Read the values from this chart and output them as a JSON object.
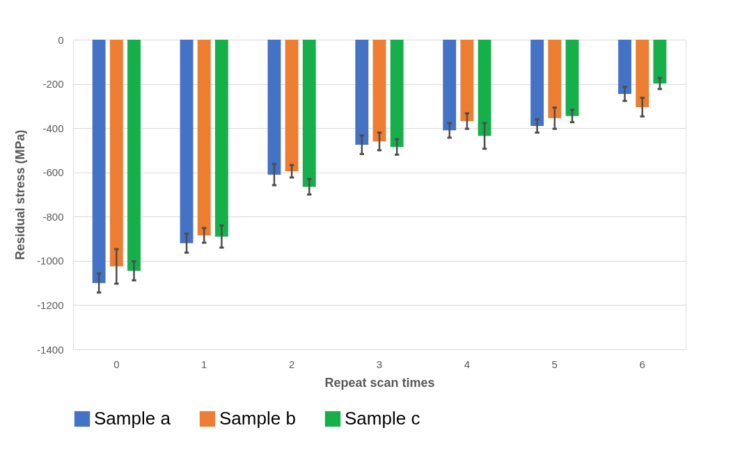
{
  "chart_data": {
    "type": "bar",
    "xlabel": "Repeat scan times",
    "ylabel": "Residual stress (MPa)",
    "categories": [
      "0",
      "1",
      "2",
      "3",
      "4",
      "5",
      "6"
    ],
    "series": [
      {
        "name": "Sample a",
        "color": "#4472c4",
        "values": [
          -1100,
          -920,
          -610,
          -475,
          -410,
          -390,
          -245
        ],
        "errors": [
          43,
          43,
          48,
          42,
          33,
          30,
          32
        ]
      },
      {
        "name": "Sample b",
        "color": "#ed7d31",
        "values": [
          -1025,
          -885,
          -595,
          -460,
          -368,
          -355,
          -305
        ],
        "errors": [
          78,
          33,
          28,
          40,
          35,
          48,
          42
        ]
      },
      {
        "name": "Sample c",
        "color": "#16b04b",
        "values": [
          -1045,
          -890,
          -665,
          -485,
          -435,
          -345,
          -198
        ],
        "errors": [
          43,
          50,
          35,
          35,
          58,
          28,
          25
        ]
      }
    ],
    "ylim": [
      -1400,
      0
    ],
    "yticks": [
      -1400,
      -1200,
      -1000,
      -800,
      -600,
      -400,
      -200,
      0
    ],
    "grid": "y",
    "legend": "bottom"
  }
}
